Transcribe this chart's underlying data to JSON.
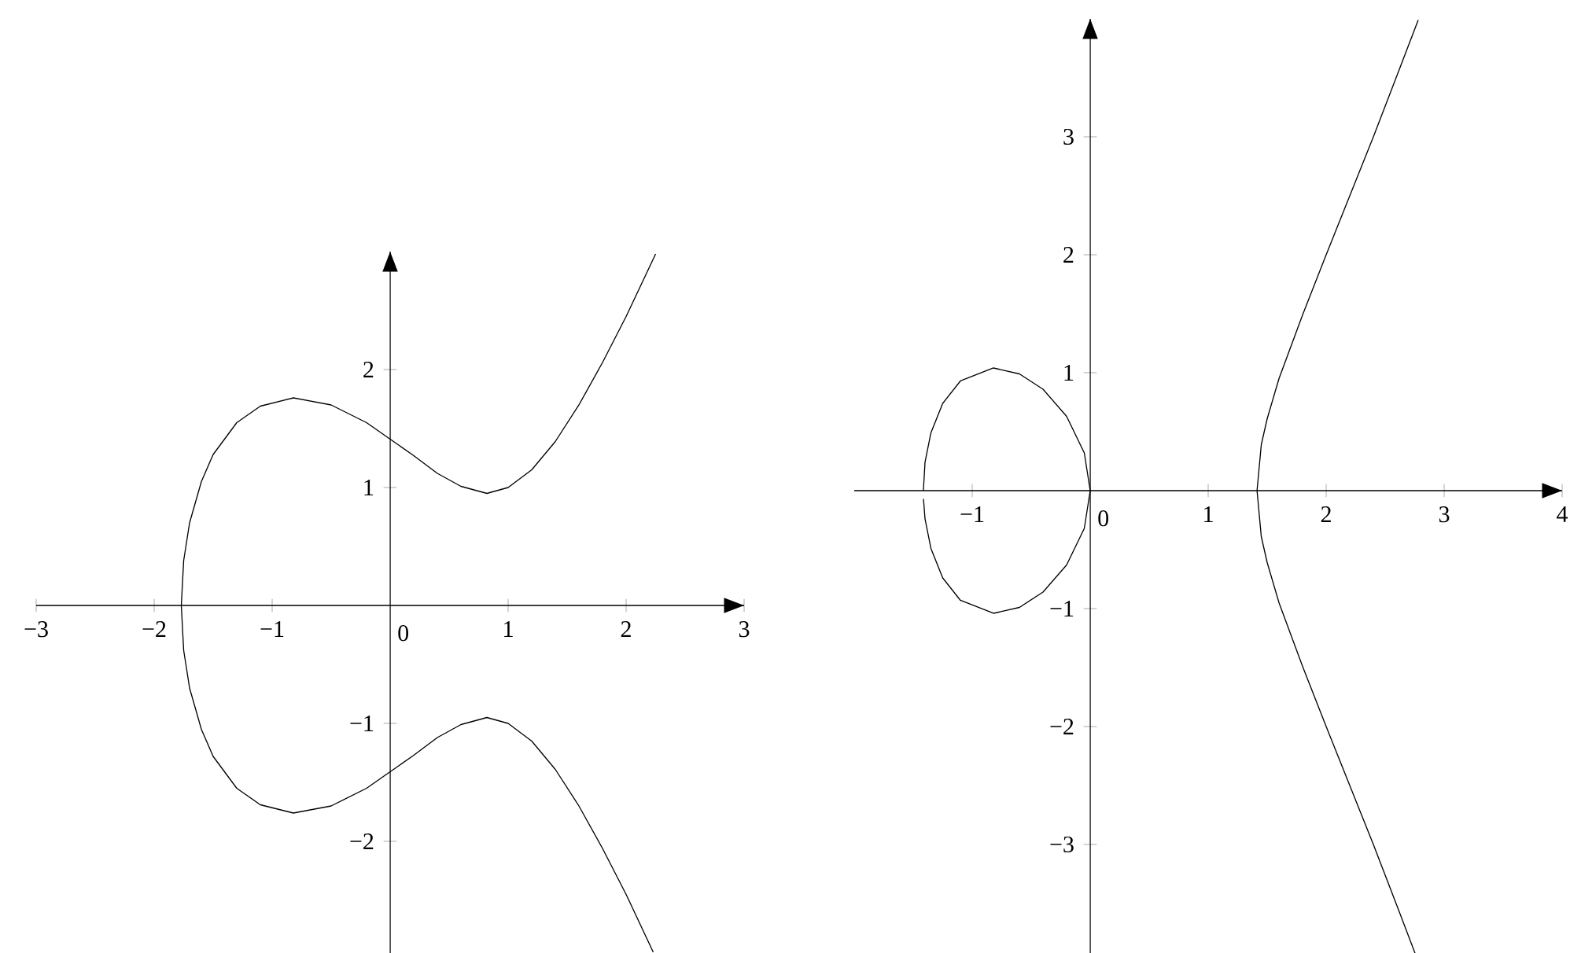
{
  "chart_data": [
    {
      "type": "line",
      "xlim": [
        -3,
        3
      ],
      "ylim": [
        -2.95,
        3
      ],
      "xticks": [
        {
          "value": -3,
          "label": "−3"
        },
        {
          "value": -2,
          "label": "−2"
        },
        {
          "value": -1,
          "label": "−1"
        },
        {
          "value": 0,
          "label": "0"
        },
        1,
        2,
        3
      ],
      "yticks": [
        {
          "value": -2,
          "label": "−2"
        },
        {
          "value": -1,
          "label": "−1"
        },
        1,
        2
      ],
      "grid": false,
      "marker": "none",
      "line_style": "solid",
      "series": [
        {
          "color": "#000000",
          "x": [
            2.23,
            2.0,
            1.8,
            1.6,
            1.4,
            1.2,
            1.0,
            0.82,
            0.6,
            0.4,
            0.2,
            0,
            -0.2,
            -0.5,
            -0.82,
            -1.1,
            -1.3,
            -1.5,
            -1.6,
            -1.7,
            -1.75,
            -1.77,
            -1.75,
            -1.7,
            -1.6,
            -1.5,
            -1.3,
            -1.1,
            -0.82,
            -0.5,
            -0.2,
            0,
            0.2,
            0.4,
            0.6,
            0.82,
            1.0,
            1.2,
            1.4,
            1.6,
            1.8,
            2.0,
            2.25
          ],
          "values": [
            -2.94,
            -2.45,
            -2.06,
            -1.7,
            -1.39,
            -1.15,
            -1.0,
            -0.95,
            -1.01,
            -1.12,
            -1.27,
            -1.41,
            -1.55,
            -1.7,
            -1.76,
            -1.69,
            -1.55,
            -1.28,
            -1.05,
            -0.7,
            -0.38,
            0,
            0.38,
            0.7,
            1.05,
            1.28,
            1.55,
            1.69,
            1.76,
            1.7,
            1.55,
            1.41,
            1.27,
            1.12,
            1.01,
            0.95,
            1.0,
            1.15,
            1.39,
            1.7,
            2.06,
            2.45,
            2.98
          ]
        }
      ]
    },
    {
      "type": "line",
      "xlim": [
        -2,
        4
      ],
      "ylim": [
        -3.95,
        4
      ],
      "xticks": [
        {
          "value": -1,
          "label": "−1"
        },
        {
          "value": 0,
          "label": "0"
        },
        1,
        2,
        3,
        4
      ],
      "yticks": [
        {
          "value": -3,
          "label": "−3"
        },
        {
          "value": -2,
          "label": "−2"
        },
        {
          "value": -1,
          "label": "−1"
        },
        1,
        2,
        3
      ],
      "grid": false,
      "marker": "none",
      "line_style": "solid",
      "series": [
        {
          "color": "#000000",
          "x": [
            -1.414,
            -1.4,
            -1.35,
            -1.25,
            -1.1,
            -0.82,
            -0.6,
            -0.4,
            -0.2,
            -0.05,
            0,
            -0.05,
            -0.2,
            -0.4,
            -0.6,
            -0.82,
            -1.1,
            -1.25,
            -1.35,
            -1.4,
            -1.413,
            2.0,
            2.76,
            2.6,
            2.4,
            2.2,
            2.0,
            1.8,
            1.6,
            1.5,
            1.45,
            1.414,
            1.45,
            1.5,
            1.6,
            1.8,
            2.0,
            2.2,
            2.4,
            2.6,
            2.78
          ],
          "values": [
            0,
            0.24,
            0.49,
            0.74,
            0.93,
            1.04,
            0.99,
            0.86,
            0.63,
            0.32,
            0,
            -0.32,
            -0.63,
            -0.86,
            -0.99,
            -1.04,
            -0.93,
            -0.74,
            -0.49,
            -0.24,
            -0.07,
            null,
            -3.94,
            -3.52,
            -3.0,
            -2.5,
            -2.0,
            -1.49,
            -0.95,
            -0.61,
            -0.39,
            0,
            0.39,
            0.61,
            0.95,
            1.49,
            2.0,
            2.5,
            3.0,
            3.52,
            3.99
          ]
        }
      ]
    }
  ]
}
